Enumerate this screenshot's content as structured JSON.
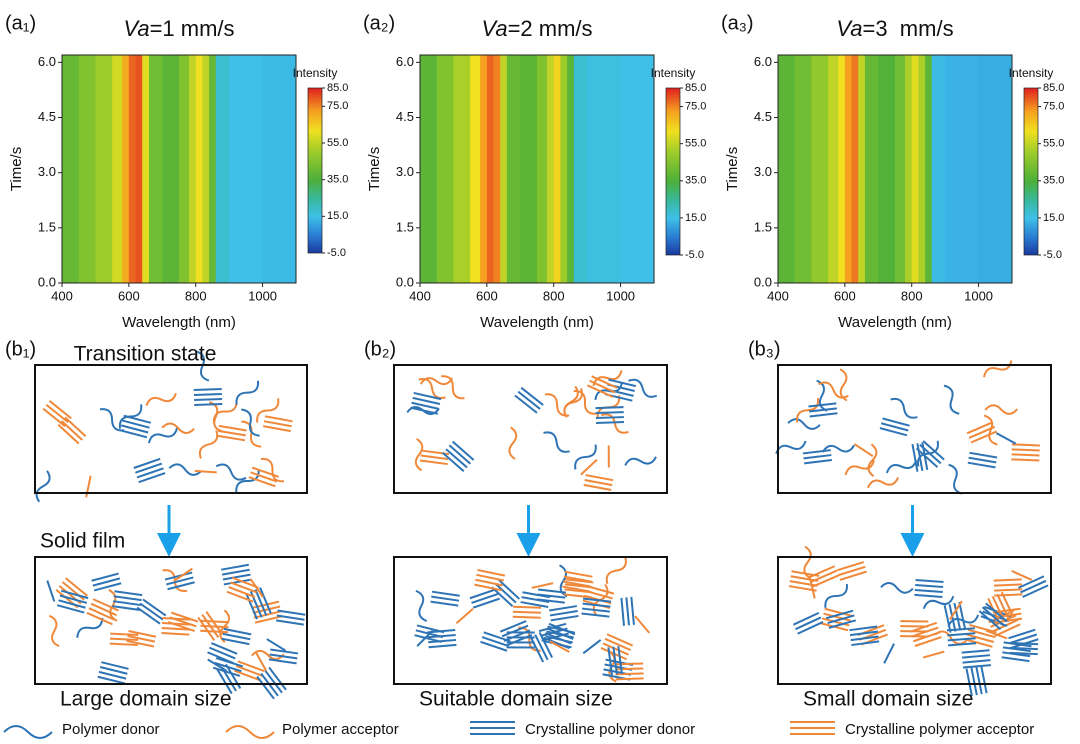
{
  "heatmaps": [
    {
      "label": "(a₁)",
      "title_var": "Va",
      "title_rest": "=1 mm/s",
      "xlabel": "Wavelength (nm)",
      "ylabel": "Time/s",
      "xlim": [
        400,
        1100
      ],
      "ylim": [
        0,
        6.2
      ],
      "xticks": [
        400,
        600,
        800,
        1000
      ],
      "yticks": [
        {
          "value": 0,
          "label": "0.0"
        },
        1.5,
        {
          "value": 3,
          "label": "3.0"
        },
        4.5,
        {
          "value": 6,
          "label": "6.0"
        }
      ],
      "colorbar_title": "Intensity",
      "colorbar_lim": [
        -5,
        85
      ],
      "colorbar_ticks": [
        {
          "value": -5,
          "label": "-5.0"
        },
        {
          "value": 15,
          "label": "15.0"
        },
        {
          "value": 35,
          "label": "35.0"
        },
        {
          "value": 55,
          "label": "55.0"
        },
        {
          "value": 75,
          "label": "75.0"
        },
        {
          "value": 85,
          "label": "85.0"
        }
      ],
      "bins": [
        400,
        450,
        500,
        550,
        580,
        600,
        620,
        640,
        660,
        700,
        750,
        780,
        800,
        820,
        840,
        860,
        900,
        1000,
        1100
      ],
      "values": [
        40,
        45,
        50,
        58,
        70,
        78,
        80,
        60,
        42,
        38,
        45,
        55,
        62,
        55,
        40,
        18,
        15,
        14
      ]
    },
    {
      "label": "(a₂)",
      "title_var": "Va",
      "title_rest": "=2 mm/s",
      "xlabel": "Wavelength (nm)",
      "ylabel": "Time/s",
      "xlim": [
        400,
        1100
      ],
      "ylim": [
        0,
        6.2
      ],
      "xticks": [
        400,
        600,
        800,
        1000
      ],
      "yticks": [
        {
          "value": 0,
          "label": "0.0"
        },
        1.5,
        {
          "value": 3,
          "label": "3.0"
        },
        4.5,
        {
          "value": 6,
          "label": "6.0"
        }
      ],
      "colorbar_title": "Intensity",
      "colorbar_lim": [
        -5,
        85
      ],
      "colorbar_ticks": [
        {
          "value": -5,
          "label": "-5.0"
        },
        {
          "value": 15,
          "label": "15.0"
        },
        {
          "value": 35,
          "label": "35.0"
        },
        {
          "value": 55,
          "label": "55.0"
        },
        {
          "value": 75,
          "label": "75.0"
        },
        {
          "value": 85,
          "label": "85.0"
        }
      ],
      "bins": [
        400,
        450,
        500,
        550,
        580,
        600,
        620,
        640,
        660,
        700,
        750,
        780,
        800,
        820,
        840,
        860,
        900,
        1000,
        1100
      ],
      "values": [
        38,
        45,
        52,
        62,
        72,
        78,
        75,
        55,
        40,
        38,
        45,
        55,
        64,
        50,
        38,
        18,
        16,
        15
      ]
    },
    {
      "label": "(a₃)",
      "title_var": "Va",
      "title_rest": "=3  mm/s",
      "xlabel": "Wavelength (nm)",
      "ylabel": "Time/s",
      "xlim": [
        400,
        1100
      ],
      "ylim": [
        0,
        6.2
      ],
      "xticks": [
        400,
        600,
        800,
        1000
      ],
      "yticks": [
        {
          "value": 0,
          "label": "0.0"
        },
        1.5,
        {
          "value": 3,
          "label": "3.0"
        },
        4.5,
        {
          "value": 6,
          "label": "6.0"
        }
      ],
      "colorbar_title": "Intensity",
      "colorbar_lim": [
        -5,
        85
      ],
      "colorbar_ticks": [
        {
          "value": -5,
          "label": "-5.0"
        },
        {
          "value": 15,
          "label": "15.0"
        },
        {
          "value": 35,
          "label": "35.0"
        },
        {
          "value": 55,
          "label": "55.0"
        },
        {
          "value": 75,
          "label": "75.0"
        },
        {
          "value": 85,
          "label": "85.0"
        }
      ],
      "bins": [
        400,
        450,
        500,
        550,
        580,
        600,
        620,
        640,
        660,
        700,
        750,
        780,
        800,
        820,
        840,
        860,
        900,
        1000,
        1100
      ],
      "values": [
        38,
        42,
        48,
        55,
        62,
        72,
        76,
        55,
        40,
        36,
        42,
        52,
        60,
        52,
        38,
        14,
        13,
        12
      ]
    }
  ],
  "schematics": [
    {
      "label": "(b₁)",
      "caption": "Large domain size"
    },
    {
      "label": "(b₂)",
      "caption": "Suitable domain size"
    },
    {
      "label": "(b₃)",
      "caption": "Small domain size"
    }
  ],
  "transition_label": "Transition state",
  "solid_label": "Solid film",
  "legend": [
    "Polymer donor",
    "Polymer acceptor",
    "Crystalline polymer donor",
    "Crystalline polymer acceptor"
  ]
}
